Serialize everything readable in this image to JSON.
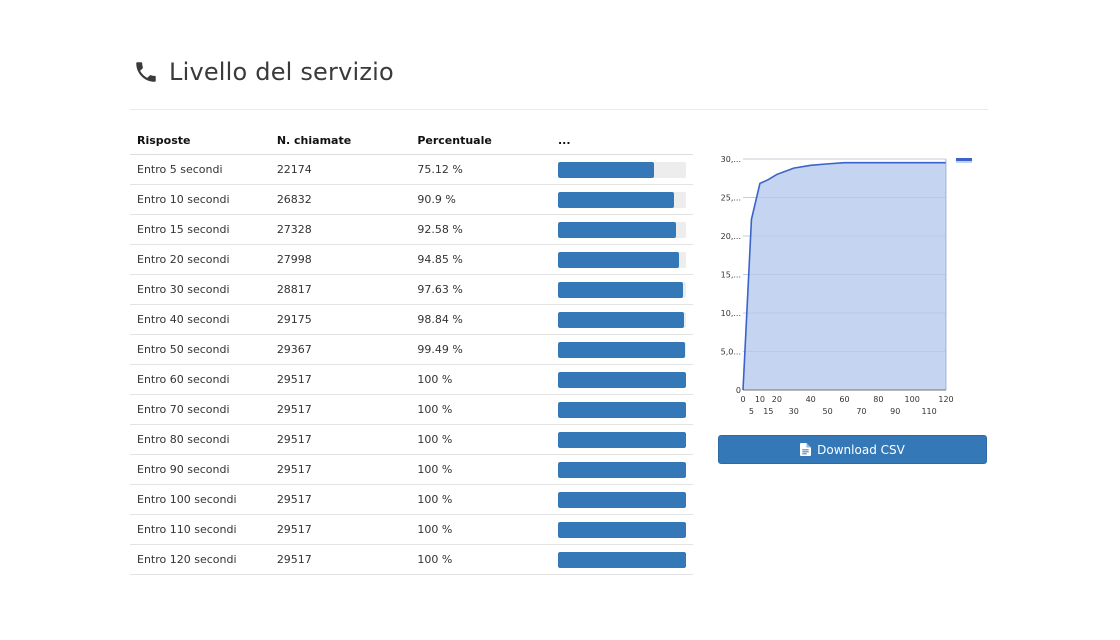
{
  "header": {
    "title": "Livello del servizio",
    "icon": "phone-icon"
  },
  "table": {
    "columns": [
      "Risposte",
      "N. chiamate",
      "Percentuale",
      "..."
    ],
    "rows": [
      {
        "label": "Entro 5 secondi",
        "calls": "22174",
        "percent": "75.12 %",
        "fraction": 0.7512
      },
      {
        "label": "Entro 10 secondi",
        "calls": "26832",
        "percent": "90.9 %",
        "fraction": 0.909
      },
      {
        "label": "Entro 15 secondi",
        "calls": "27328",
        "percent": "92.58 %",
        "fraction": 0.9258
      },
      {
        "label": "Entro 20 secondi",
        "calls": "27998",
        "percent": "94.85 %",
        "fraction": 0.9485
      },
      {
        "label": "Entro 30 secondi",
        "calls": "28817",
        "percent": "97.63 %",
        "fraction": 0.9763
      },
      {
        "label": "Entro 40 secondi",
        "calls": "29175",
        "percent": "98.84 %",
        "fraction": 0.9884
      },
      {
        "label": "Entro 50 secondi",
        "calls": "29367",
        "percent": "99.49 %",
        "fraction": 0.9949
      },
      {
        "label": "Entro 60 secondi",
        "calls": "29517",
        "percent": "100 %",
        "fraction": 1.0
      },
      {
        "label": "Entro 70 secondi",
        "calls": "29517",
        "percent": "100 %",
        "fraction": 1.0
      },
      {
        "label": "Entro 80 secondi",
        "calls": "29517",
        "percent": "100 %",
        "fraction": 1.0
      },
      {
        "label": "Entro 90 secondi",
        "calls": "29517",
        "percent": "100 %",
        "fraction": 1.0
      },
      {
        "label": "Entro 100 secondi",
        "calls": "29517",
        "percent": "100 %",
        "fraction": 1.0
      },
      {
        "label": "Entro 110 secondi",
        "calls": "29517",
        "percent": "100 %",
        "fraction": 1.0
      },
      {
        "label": "Entro 120 secondi",
        "calls": "29517",
        "percent": "100 %",
        "fraction": 1.0
      }
    ]
  },
  "chart_data": {
    "type": "area",
    "title": "",
    "xlabel": "",
    "ylabel": "",
    "x": [
      0,
      5,
      10,
      15,
      20,
      30,
      40,
      50,
      60,
      70,
      80,
      90,
      100,
      110,
      120
    ],
    "series": [
      {
        "values": [
          0,
          22174,
          26832,
          27328,
          27998,
          28817,
          29175,
          29367,
          29517,
          29517,
          29517,
          29517,
          29517,
          29517,
          29517
        ]
      }
    ],
    "ylim": [
      0,
      30000
    ],
    "y_tick_labels": [
      "0",
      "5,0...",
      "10,...",
      "15,...",
      "20,...",
      "25,...",
      "30,..."
    ],
    "x_tick_labels_top": [
      "0",
      "10",
      "20",
      "40",
      "60",
      "80",
      "100",
      "120"
    ],
    "x_tick_labels_bottom": [
      "5",
      "15",
      "30",
      "50",
      "70",
      "90",
      "110"
    ],
    "grid": true,
    "colors": {
      "line": "#3a63c9",
      "fill": "#c2d3f0",
      "grid": "#c9c9c9"
    }
  },
  "download": {
    "label": "Download CSV",
    "icon": "file-icon"
  },
  "colors": {
    "accent": "#3478b7",
    "track": "#ededed"
  }
}
